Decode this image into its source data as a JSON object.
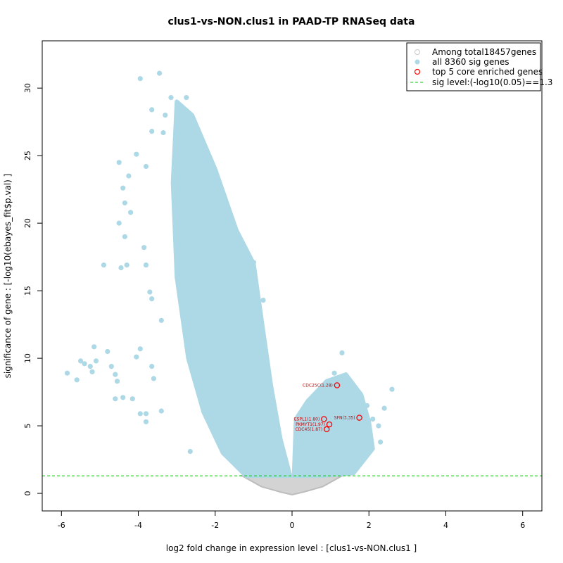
{
  "chart_data": {
    "type": "scatter",
    "title": "clus1-vs-NON.clus1 in PAAD-TP RNASeq data",
    "xlabel": "log2 fold change in expression level : [clus1-vs-NON.clus1 ]",
    "ylabel": "significance of gene : [-log10(ebayes_fit$p.val) ]",
    "xlim": [
      -6.5,
      6.5
    ],
    "ylim": [
      -1.3,
      33.5
    ],
    "x_ticks": [
      -6,
      -4,
      -2,
      0,
      2,
      4,
      6
    ],
    "y_ticks": [
      0,
      5,
      10,
      15,
      20,
      25,
      30
    ],
    "sig_level": 1.3,
    "colors": {
      "background_points": "#d3d3d3",
      "sig_points": "#add8e6",
      "core_genes": "#ff0000",
      "gene_labels": "#cc0000",
      "sig_line": "#00cc00"
    },
    "legend": {
      "position": "top-right",
      "entries": [
        "Among total18457genes",
        "all 8360 sig genes",
        "top 5 core enriched genes",
        "sig level:(-log10(0.05)==1.3"
      ]
    },
    "core_genes": [
      {
        "label": "CDC25C(1.28)",
        "x": 1.17,
        "y": 8.0
      },
      {
        "label": "SFN(3.35)",
        "x": 1.75,
        "y": 5.6
      },
      {
        "label": "ESPL1(1.80)",
        "x": 0.83,
        "y": 5.5
      },
      {
        "label": "PKMYT1(1.97)",
        "x": 0.97,
        "y": 5.1
      },
      {
        "label": "CDC45(1.87)",
        "x": 0.9,
        "y": 4.75
      }
    ],
    "highlight_points": [
      {
        "x": -3.95,
        "y": 30.7
      },
      {
        "x": -3.45,
        "y": 31.1
      },
      {
        "x": -3.15,
        "y": 29.3
      },
      {
        "x": -2.75,
        "y": 29.3
      },
      {
        "x": -3.65,
        "y": 28.4
      },
      {
        "x": -3.3,
        "y": 28.0
      },
      {
        "x": -2.95,
        "y": 27.3
      },
      {
        "x": -3.65,
        "y": 26.8
      },
      {
        "x": -3.35,
        "y": 26.7
      },
      {
        "x": -4.5,
        "y": 24.5
      },
      {
        "x": -4.05,
        "y": 25.1
      },
      {
        "x": -3.8,
        "y": 24.2
      },
      {
        "x": -4.25,
        "y": 23.5
      },
      {
        "x": -2.55,
        "y": 23.5
      },
      {
        "x": -4.4,
        "y": 22.6
      },
      {
        "x": -1.85,
        "y": 22.6
      },
      {
        "x": -4.35,
        "y": 21.5
      },
      {
        "x": -4.2,
        "y": 20.8
      },
      {
        "x": -4.5,
        "y": 20.0
      },
      {
        "x": -4.35,
        "y": 19.0
      },
      {
        "x": -1.55,
        "y": 19.8
      },
      {
        "x": -1.3,
        "y": 18.5
      },
      {
        "x": -3.85,
        "y": 18.2
      },
      {
        "x": -4.9,
        "y": 16.9
      },
      {
        "x": -4.45,
        "y": 16.7
      },
      {
        "x": -4.3,
        "y": 16.9
      },
      {
        "x": -3.8,
        "y": 16.9
      },
      {
        "x": -1.0,
        "y": 17.1
      },
      {
        "x": -3.7,
        "y": 14.9
      },
      {
        "x": -3.65,
        "y": 14.4
      },
      {
        "x": -1.2,
        "y": 15.2
      },
      {
        "x": -0.75,
        "y": 14.3
      },
      {
        "x": -3.4,
        "y": 12.8
      },
      {
        "x": -5.15,
        "y": 10.85
      },
      {
        "x": -4.8,
        "y": 10.5
      },
      {
        "x": -3.95,
        "y": 10.7
      },
      {
        "x": -5.4,
        "y": 9.6
      },
      {
        "x": -5.25,
        "y": 9.4
      },
      {
        "x": -5.1,
        "y": 9.8
      },
      {
        "x": -4.7,
        "y": 9.4
      },
      {
        "x": -4.05,
        "y": 10.1
      },
      {
        "x": -5.85,
        "y": 8.9
      },
      {
        "x": -5.6,
        "y": 8.4
      },
      {
        "x": -5.5,
        "y": 9.8
      },
      {
        "x": -5.2,
        "y": 9.0
      },
      {
        "x": -4.6,
        "y": 8.8
      },
      {
        "x": -4.55,
        "y": 8.3
      },
      {
        "x": -3.65,
        "y": 9.4
      },
      {
        "x": -3.6,
        "y": 8.5
      },
      {
        "x": -4.4,
        "y": 7.1
      },
      {
        "x": -4.6,
        "y": 7.0
      },
      {
        "x": -4.15,
        "y": 7.0
      },
      {
        "x": -3.95,
        "y": 5.9
      },
      {
        "x": -3.8,
        "y": 5.9
      },
      {
        "x": -3.8,
        "y": 5.3
      },
      {
        "x": -3.4,
        "y": 6.1
      },
      {
        "x": -2.65,
        "y": 3.1
      },
      {
        "x": 1.3,
        "y": 10.4
      },
      {
        "x": 1.1,
        "y": 8.9
      },
      {
        "x": 2.6,
        "y": 7.7
      },
      {
        "x": 2.4,
        "y": 6.3
      },
      {
        "x": 2.25,
        "y": 5.0
      },
      {
        "x": 2.3,
        "y": 3.8
      },
      {
        "x": 2.1,
        "y": 5.5
      },
      {
        "x": 1.95,
        "y": 6.5
      }
    ],
    "left_cloud": [
      {
        "x": -0.05,
        "y": 1.3
      },
      {
        "x": -0.3,
        "y": 4
      },
      {
        "x": -0.55,
        "y": 8
      },
      {
        "x": -0.75,
        "y": 12
      },
      {
        "x": -1.0,
        "y": 17
      },
      {
        "x": -1.45,
        "y": 19.5
      },
      {
        "x": -2.0,
        "y": 24
      },
      {
        "x": -2.6,
        "y": 28
      },
      {
        "x": -3.0,
        "y": 29
      },
      {
        "x": -3.1,
        "y": 23
      },
      {
        "x": -3.0,
        "y": 16
      },
      {
        "x": -2.7,
        "y": 10
      },
      {
        "x": -2.3,
        "y": 6
      },
      {
        "x": -1.8,
        "y": 3
      },
      {
        "x": -1.2,
        "y": 1.3
      }
    ],
    "right_cloud": [
      {
        "x": 0.05,
        "y": 1.3
      },
      {
        "x": 0.1,
        "y": 5.5
      },
      {
        "x": 0.4,
        "y": 6.8
      },
      {
        "x": 0.9,
        "y": 8.3
      },
      {
        "x": 1.4,
        "y": 8.8
      },
      {
        "x": 1.8,
        "y": 7.3
      },
      {
        "x": 2.0,
        "y": 5.3
      },
      {
        "x": 2.1,
        "y": 3.3
      },
      {
        "x": 1.6,
        "y": 1.5
      },
      {
        "x": 0.8,
        "y": 1.3
      }
    ],
    "gray_base": [
      {
        "x": -1.3,
        "y": 1.3
      },
      {
        "x": -0.8,
        "y": 0.5
      },
      {
        "x": -0.3,
        "y": 0.1
      },
      {
        "x": 0.0,
        "y": -0.1
      },
      {
        "x": 0.3,
        "y": 0.1
      },
      {
        "x": 0.8,
        "y": 0.5
      },
      {
        "x": 1.3,
        "y": 1.3
      }
    ]
  }
}
